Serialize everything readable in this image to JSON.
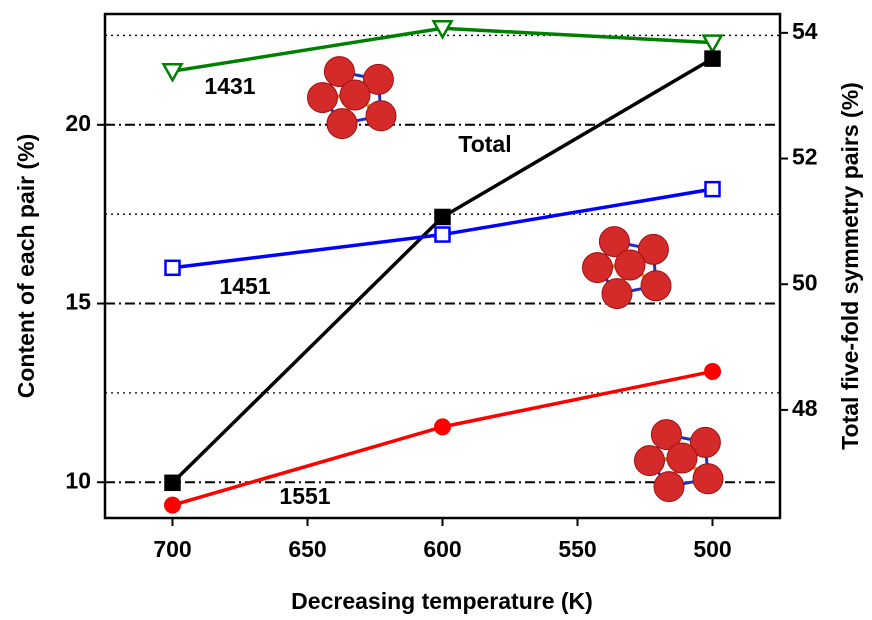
{
  "chart_data": {
    "type": "line",
    "x_label": "Decreasing temperature (K)",
    "y_label": "Content of each pair (%)",
    "y2_label": "Total five-fold symmetry pairs (%)",
    "x": [
      700,
      600,
      500
    ],
    "xlim": [
      725,
      475
    ],
    "xticks": [
      700,
      650,
      600,
      550,
      500
    ],
    "ylim": [
      9,
      23.1
    ],
    "yticks": [
      10,
      15,
      20
    ],
    "yminorticks": [
      12.5,
      17.5,
      22.5
    ],
    "y2lim": [
      46.28,
      54.3
    ],
    "y2ticks": [
      48,
      50,
      52,
      54
    ],
    "grid": {
      "major": "dash-dot",
      "minor": "dotted"
    },
    "series": [
      {
        "name": "1431",
        "color": "#008000",
        "marker": "triangle-down-open",
        "values": [
          21.5,
          22.7,
          22.3
        ]
      },
      {
        "name": "Total",
        "color": "#000000",
        "marker": "square",
        "axis": "y2",
        "values": [
          46.84,
          51.07,
          53.59
        ]
      },
      {
        "name": "1451",
        "color": "#0000ff",
        "marker": "square-open",
        "values": [
          16.0,
          16.93,
          18.2
        ]
      },
      {
        "name": "1551",
        "color": "#ff0000",
        "marker": "circle",
        "values": [
          9.36,
          11.55,
          13.1
        ]
      }
    ]
  }
}
